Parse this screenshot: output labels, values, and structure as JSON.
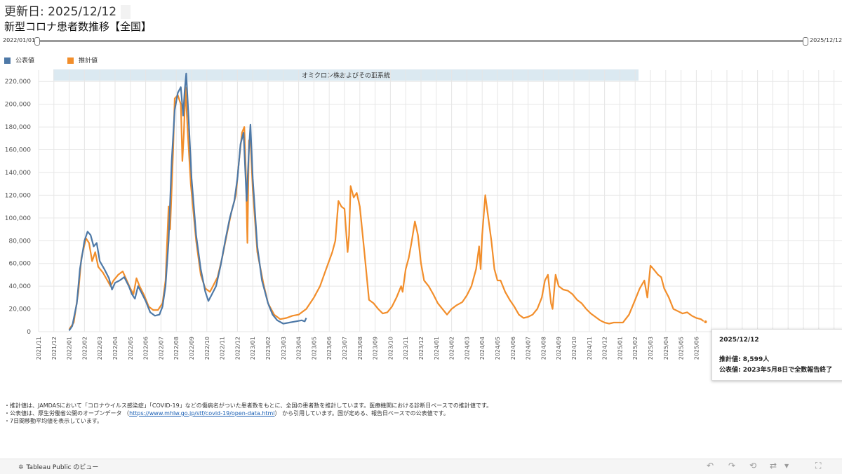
{
  "header": {
    "updated": "更新日: 2025/12/12",
    "title": "新型コロナ患者数推移【全国】"
  },
  "slider": {
    "start": "2022/01/01",
    "end": "2025/12/12"
  },
  "legend": [
    {
      "label": "公表値",
      "color": "#4e79a7"
    },
    {
      "label": "推計値",
      "color": "#f28e2b"
    }
  ],
  "chart_data": {
    "type": "line",
    "annotation_band": "オミクロン株およびその亜系統",
    "ylim": [
      0,
      230000
    ],
    "yticks": [
      0,
      20000,
      40000,
      60000,
      80000,
      100000,
      120000,
      140000,
      160000,
      180000,
      200000,
      220000
    ],
    "ytick_labels": [
      "0",
      "20,000",
      "40,000",
      "60,000",
      "80,000",
      "100,000",
      "120,000",
      "140,000",
      "160,000",
      "180,000",
      "200,000",
      "220,000"
    ],
    "xtick_labels": [
      "2021/11",
      "2021/12",
      "2022/01",
      "2022/02",
      "2022/03",
      "2022/04",
      "2022/05",
      "2022/06",
      "2022/07",
      "2022/08",
      "2022/09",
      "2022/10",
      "2022/11",
      "2022/12",
      "2023/01",
      "2023/02",
      "2023/03",
      "2023/04",
      "2023/05",
      "2023/06",
      "2023/07",
      "2023/08",
      "2023/09",
      "2023/10",
      "2023/11",
      "2023/12",
      "2024/01",
      "2024/02",
      "2024/03",
      "2024/04",
      "2024/05",
      "2024/06",
      "2024/07",
      "2024/08",
      "2024/09",
      "2024/10",
      "2024/11",
      "2024/12",
      "2025/01",
      "2025/02",
      "2025/03",
      "2025/04",
      "2025/05",
      "2025/06"
    ],
    "grid": true,
    "x_unit": "month index from 2021/11",
    "series": [
      {
        "name": "公表値",
        "color": "#4e79a7",
        "points": [
          [
            2.0,
            1000
          ],
          [
            2.2,
            5000
          ],
          [
            2.5,
            25000
          ],
          [
            2.7,
            55000
          ],
          [
            3.0,
            80000
          ],
          [
            3.2,
            88000
          ],
          [
            3.4,
            85000
          ],
          [
            3.6,
            75000
          ],
          [
            3.8,
            78000
          ],
          [
            4.0,
            62000
          ],
          [
            4.3,
            55000
          ],
          [
            4.6,
            47000
          ],
          [
            4.8,
            37000
          ],
          [
            5.0,
            43000
          ],
          [
            5.3,
            45000
          ],
          [
            5.6,
            48000
          ],
          [
            5.9,
            40000
          ],
          [
            6.1,
            33000
          ],
          [
            6.3,
            29000
          ],
          [
            6.5,
            40000
          ],
          [
            6.7,
            35000
          ],
          [
            7.0,
            27000
          ],
          [
            7.3,
            17000
          ],
          [
            7.6,
            14000
          ],
          [
            7.9,
            15000
          ],
          [
            8.1,
            22000
          ],
          [
            8.3,
            40000
          ],
          [
            8.5,
            80000
          ],
          [
            8.7,
            150000
          ],
          [
            8.9,
            195000
          ],
          [
            9.1,
            210000
          ],
          [
            9.3,
            215000
          ],
          [
            9.45,
            190000
          ],
          [
            9.55,
            212000
          ],
          [
            9.65,
            227000
          ],
          [
            9.8,
            190000
          ],
          [
            10.0,
            135000
          ],
          [
            10.3,
            85000
          ],
          [
            10.6,
            55000
          ],
          [
            10.9,
            35000
          ],
          [
            11.1,
            27000
          ],
          [
            11.3,
            32000
          ],
          [
            11.6,
            40000
          ],
          [
            11.9,
            58000
          ],
          [
            12.2,
            80000
          ],
          [
            12.5,
            100000
          ],
          [
            12.8,
            115000
          ],
          [
            13.0,
            135000
          ],
          [
            13.2,
            165000
          ],
          [
            13.4,
            175000
          ],
          [
            13.6,
            115000
          ],
          [
            13.75,
            160000
          ],
          [
            13.85,
            182000
          ],
          [
            14.0,
            135000
          ],
          [
            14.3,
            75000
          ],
          [
            14.6,
            45000
          ],
          [
            15.0,
            25000
          ],
          [
            15.3,
            15000
          ],
          [
            15.6,
            10000
          ],
          [
            16.0,
            7000
          ],
          [
            16.4,
            8000
          ],
          [
            16.8,
            9000
          ],
          [
            17.2,
            10000
          ],
          [
            17.4,
            9000
          ],
          [
            17.5,
            12000
          ]
        ]
      },
      {
        "name": "推計値",
        "color": "#f28e2b",
        "points": [
          [
            2.0,
            2000
          ],
          [
            2.3,
            8000
          ],
          [
            2.6,
            35000
          ],
          [
            2.8,
            65000
          ],
          [
            3.1,
            82000
          ],
          [
            3.3,
            78000
          ],
          [
            3.5,
            62000
          ],
          [
            3.7,
            70000
          ],
          [
            3.9,
            57000
          ],
          [
            4.2,
            52000
          ],
          [
            4.5,
            45000
          ],
          [
            4.7,
            40000
          ],
          [
            4.9,
            45000
          ],
          [
            5.2,
            50000
          ],
          [
            5.5,
            53000
          ],
          [
            5.8,
            44000
          ],
          [
            6.0,
            38000
          ],
          [
            6.2,
            33000
          ],
          [
            6.4,
            47000
          ],
          [
            6.6,
            40000
          ],
          [
            6.9,
            32000
          ],
          [
            7.2,
            22000
          ],
          [
            7.5,
            19000
          ],
          [
            7.8,
            19000
          ],
          [
            8.1,
            25000
          ],
          [
            8.3,
            45000
          ],
          [
            8.5,
            110000
          ],
          [
            8.6,
            90000
          ],
          [
            8.8,
            160000
          ],
          [
            8.9,
            205000
          ],
          [
            9.1,
            208000
          ],
          [
            9.3,
            200000
          ],
          [
            9.4,
            150000
          ],
          [
            9.5,
            175000
          ],
          [
            9.6,
            215000
          ],
          [
            9.75,
            175000
          ],
          [
            9.95,
            130000
          ],
          [
            10.3,
            80000
          ],
          [
            10.6,
            50000
          ],
          [
            10.9,
            38000
          ],
          [
            11.2,
            35000
          ],
          [
            11.4,
            40000
          ],
          [
            11.7,
            48000
          ],
          [
            12.0,
            65000
          ],
          [
            12.3,
            85000
          ],
          [
            12.6,
            105000
          ],
          [
            12.9,
            120000
          ],
          [
            13.1,
            150000
          ],
          [
            13.3,
            175000
          ],
          [
            13.45,
            180000
          ],
          [
            13.55,
            140000
          ],
          [
            13.65,
            78000
          ],
          [
            13.75,
            168000
          ],
          [
            13.85,
            170000
          ],
          [
            14.0,
            125000
          ],
          [
            14.3,
            70000
          ],
          [
            14.7,
            42000
          ],
          [
            15.0,
            25000
          ],
          [
            15.4,
            15000
          ],
          [
            15.8,
            11000
          ],
          [
            16.2,
            12000
          ],
          [
            16.6,
            14000
          ],
          [
            17.0,
            15000
          ],
          [
            17.5,
            20000
          ],
          [
            18.0,
            30000
          ],
          [
            18.4,
            40000
          ],
          [
            18.8,
            55000
          ],
          [
            19.2,
            70000
          ],
          [
            19.4,
            80000
          ],
          [
            19.6,
            115000
          ],
          [
            19.8,
            110000
          ],
          [
            20.0,
            108000
          ],
          [
            20.2,
            70000
          ],
          [
            20.3,
            85000
          ],
          [
            20.4,
            128000
          ],
          [
            20.6,
            118000
          ],
          [
            20.8,
            122000
          ],
          [
            21.0,
            110000
          ],
          [
            21.3,
            70000
          ],
          [
            21.6,
            28000
          ],
          [
            21.9,
            25000
          ],
          [
            22.2,
            20000
          ],
          [
            22.5,
            16000
          ],
          [
            22.8,
            17000
          ],
          [
            23.1,
            22000
          ],
          [
            23.4,
            30000
          ],
          [
            23.7,
            40000
          ],
          [
            23.8,
            35000
          ],
          [
            24.0,
            55000
          ],
          [
            24.2,
            65000
          ],
          [
            24.4,
            80000
          ],
          [
            24.6,
            97000
          ],
          [
            24.8,
            85000
          ],
          [
            25.0,
            60000
          ],
          [
            25.2,
            45000
          ],
          [
            25.5,
            40000
          ],
          [
            25.8,
            33000
          ],
          [
            26.1,
            25000
          ],
          [
            26.4,
            20000
          ],
          [
            26.7,
            15000
          ],
          [
            27.0,
            20000
          ],
          [
            27.3,
            23000
          ],
          [
            27.7,
            26000
          ],
          [
            28.0,
            32000
          ],
          [
            28.3,
            40000
          ],
          [
            28.6,
            55000
          ],
          [
            28.8,
            75000
          ],
          [
            28.9,
            55000
          ],
          [
            29.0,
            85000
          ],
          [
            29.2,
            120000
          ],
          [
            29.4,
            100000
          ],
          [
            29.6,
            80000
          ],
          [
            29.8,
            55000
          ],
          [
            30.0,
            45000
          ],
          [
            30.2,
            45000
          ],
          [
            30.5,
            35000
          ],
          [
            30.8,
            28000
          ],
          [
            31.1,
            22000
          ],
          [
            31.4,
            15000
          ],
          [
            31.7,
            12000
          ],
          [
            32.0,
            13000
          ],
          [
            32.3,
            15000
          ],
          [
            32.6,
            20000
          ],
          [
            32.9,
            30000
          ],
          [
            33.1,
            45000
          ],
          [
            33.3,
            50000
          ],
          [
            33.5,
            25000
          ],
          [
            33.6,
            20000
          ],
          [
            33.8,
            50000
          ],
          [
            34.0,
            40000
          ],
          [
            34.3,
            37000
          ],
          [
            34.6,
            36000
          ],
          [
            34.9,
            33000
          ],
          [
            35.2,
            28000
          ],
          [
            35.5,
            25000
          ],
          [
            35.8,
            20000
          ],
          [
            36.1,
            16000
          ],
          [
            36.4,
            13000
          ],
          [
            36.7,
            10000
          ],
          [
            37.0,
            8000
          ],
          [
            37.3,
            7000
          ],
          [
            37.6,
            8000
          ],
          [
            37.9,
            8000
          ],
          [
            38.2,
            8000
          ],
          [
            38.6,
            15000
          ],
          [
            39.0,
            28000
          ],
          [
            39.3,
            38000
          ],
          [
            39.6,
            45000
          ],
          [
            39.8,
            30000
          ],
          [
            40.0,
            58000
          ],
          [
            40.2,
            55000
          ],
          [
            40.5,
            50000
          ],
          [
            40.7,
            48000
          ],
          [
            40.9,
            38000
          ],
          [
            41.2,
            30000
          ],
          [
            41.5,
            20000
          ],
          [
            41.8,
            18000
          ],
          [
            42.1,
            16000
          ],
          [
            42.4,
            17000
          ],
          [
            42.7,
            14000
          ],
          [
            43.0,
            12000
          ],
          [
            43.3,
            11000
          ],
          [
            43.5,
            9000
          ],
          [
            43.6,
            8599
          ]
        ]
      }
    ]
  },
  "tooltip": {
    "date": "2025/12/12",
    "line1": "推計値: 8,599人",
    "line2": "公表値: 2023年5月8日で全数報告終了"
  },
  "notes": {
    "n1": "・推計値は、JAMDASにおいて「コロナウイルス感染症」「COVID-19」などの傷病名がついた患者数をもとに、全国の患者数を推計しています。医療機関における診断日ベースでの推計値です。",
    "n2_pre": "・公表値は、厚生労働省公開のオープンデータ （",
    "n2_link": "https://www.mhlw.go.jp/stf/covid-19/open-data.html",
    "n2_post": "） から引用しています。国が定める、報告日ベースでの公表値です。",
    "n3": "・7日間移動平均値を表示しています。"
  },
  "footer": {
    "brand": "Tableau Public のビュー",
    "icons": [
      "undo-icon",
      "redo-icon",
      "revert-icon",
      "share-icon",
      "dropdown-icon",
      "fullscreen-icon"
    ]
  }
}
